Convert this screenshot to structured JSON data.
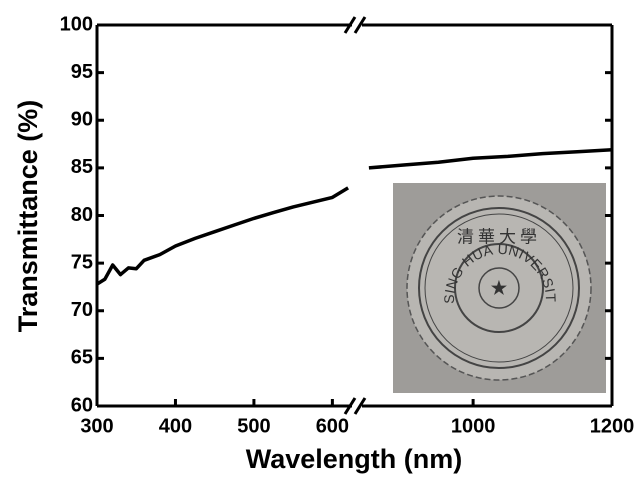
{
  "chart_data": {
    "type": "line",
    "xlabel": "Wavelength (nm)",
    "ylabel": "Transmittance (%)",
    "x": [
      300,
      310,
      320,
      330,
      340,
      350,
      360,
      380,
      400,
      425,
      450,
      475,
      500,
      525,
      550,
      575,
      600,
      620,
      700,
      850,
      900,
      950,
      1000,
      1050,
      1100,
      1150,
      1200
    ],
    "values": [
      72.8,
      73.3,
      74.8,
      73.8,
      74.5,
      74.4,
      75.3,
      75.9,
      76.8,
      77.6,
      78.3,
      79.0,
      79.7,
      80.3,
      80.9,
      81.4,
      81.9,
      82.9,
      null,
      85.0,
      85.3,
      85.6,
      86.0,
      86.2,
      86.5,
      86.7,
      86.9
    ],
    "color": "#000000",
    "xlim": [
      300,
      1200
    ],
    "xbreak": [
      625,
      840
    ],
    "xticks": [
      300,
      400,
      500,
      600,
      1000,
      1200
    ],
    "ylim": [
      60,
      100
    ],
    "yticks": [
      60,
      65,
      70,
      75,
      80,
      85,
      90,
      95,
      100
    ],
    "inset_text": "TSING HUA UNIVERSITY",
    "inset_chinese": "清華大學"
  }
}
